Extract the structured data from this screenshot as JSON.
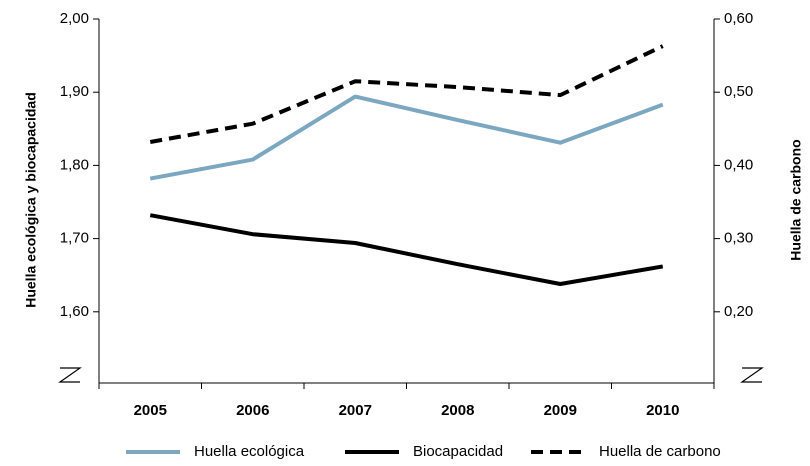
{
  "chart_data": {
    "type": "line",
    "y_label": "Huella ecológica y biocapacidad",
    "y2_label": "Huella de carbono",
    "categories": [
      "2005",
      "2006",
      "2007",
      "2008",
      "2009",
      "2010"
    ],
    "series": [
      {
        "name": "Huella ecológica",
        "color": "#7ba7c0",
        "line_style": "solid",
        "values": [
          1.782,
          1.808,
          1.894,
          1.862,
          1.831,
          1.883
        ]
      },
      {
        "name": "Biocapacidad",
        "color": "#000000",
        "line_style": "solid",
        "values": [
          1.732,
          1.706,
          1.694,
          1.665,
          1.638,
          1.662
        ]
      },
      {
        "name": "Huella de carbono",
        "color": "#000000",
        "line_style": "dashed",
        "axis": "y2",
        "values": [
          0.432,
          0.457,
          0.515,
          0.507,
          0.496,
          0.563
        ]
      }
    ],
    "ylim": [
      1.5,
      2.0
    ],
    "yticks": [
      {
        "value": 1.6,
        "label": "1,60"
      },
      {
        "value": 1.7,
        "label": "1,70"
      },
      {
        "value": 1.8,
        "label": "1,80"
      },
      {
        "value": 1.9,
        "label": "1,90"
      },
      {
        "value": 2.0,
        "label": "2,00"
      }
    ],
    "y2lim": [
      0.1,
      0.6
    ],
    "y2ticks": [
      {
        "value": 0.2,
        "label": "0,20"
      },
      {
        "value": 0.3,
        "label": "0,30"
      },
      {
        "value": 0.4,
        "label": "0,40"
      },
      {
        "value": 0.5,
        "label": "0,50"
      },
      {
        "value": 0.6,
        "label": "0,60"
      }
    ],
    "grid": false
  }
}
